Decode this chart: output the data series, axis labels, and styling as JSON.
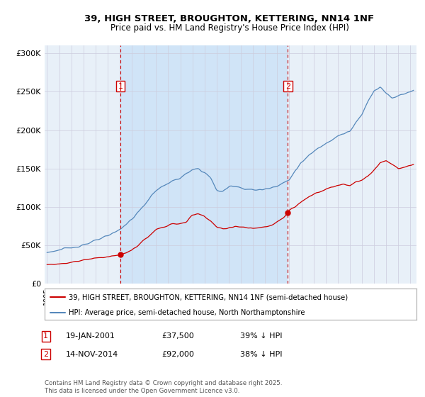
{
  "title": "39, HIGH STREET, BROUGHTON, KETTERING, NN14 1NF",
  "subtitle": "Price paid vs. HM Land Registry's House Price Index (HPI)",
  "bg_color": "#e8f0f8",
  "highlight_color": "#d0e4f7",
  "legend_label_red": "39, HIGH STREET, BROUGHTON, KETTERING, NN14 1NF (semi-detached house)",
  "legend_label_blue": "HPI: Average price, semi-detached house, North Northamptonshire",
  "footer": "Contains HM Land Registry data © Crown copyright and database right 2025.\nThis data is licensed under the Open Government Licence v3.0.",
  "sale1_date": "19-JAN-2001",
  "sale1_price": "£37,500",
  "sale1_hpi": "39% ↓ HPI",
  "sale1_x": 2001.05,
  "sale2_date": "14-NOV-2014",
  "sale2_price": "£92,000",
  "sale2_hpi": "38% ↓ HPI",
  "sale2_x": 2014.87,
  "ylim": [
    0,
    310000
  ],
  "xlim_start": 1994.8,
  "xlim_end": 2025.5,
  "red_color": "#cc0000",
  "blue_color": "#5588bb",
  "vertical_line_color": "#cc0000",
  "grid_color": "#ccccdd",
  "white_bg": "#ffffff"
}
